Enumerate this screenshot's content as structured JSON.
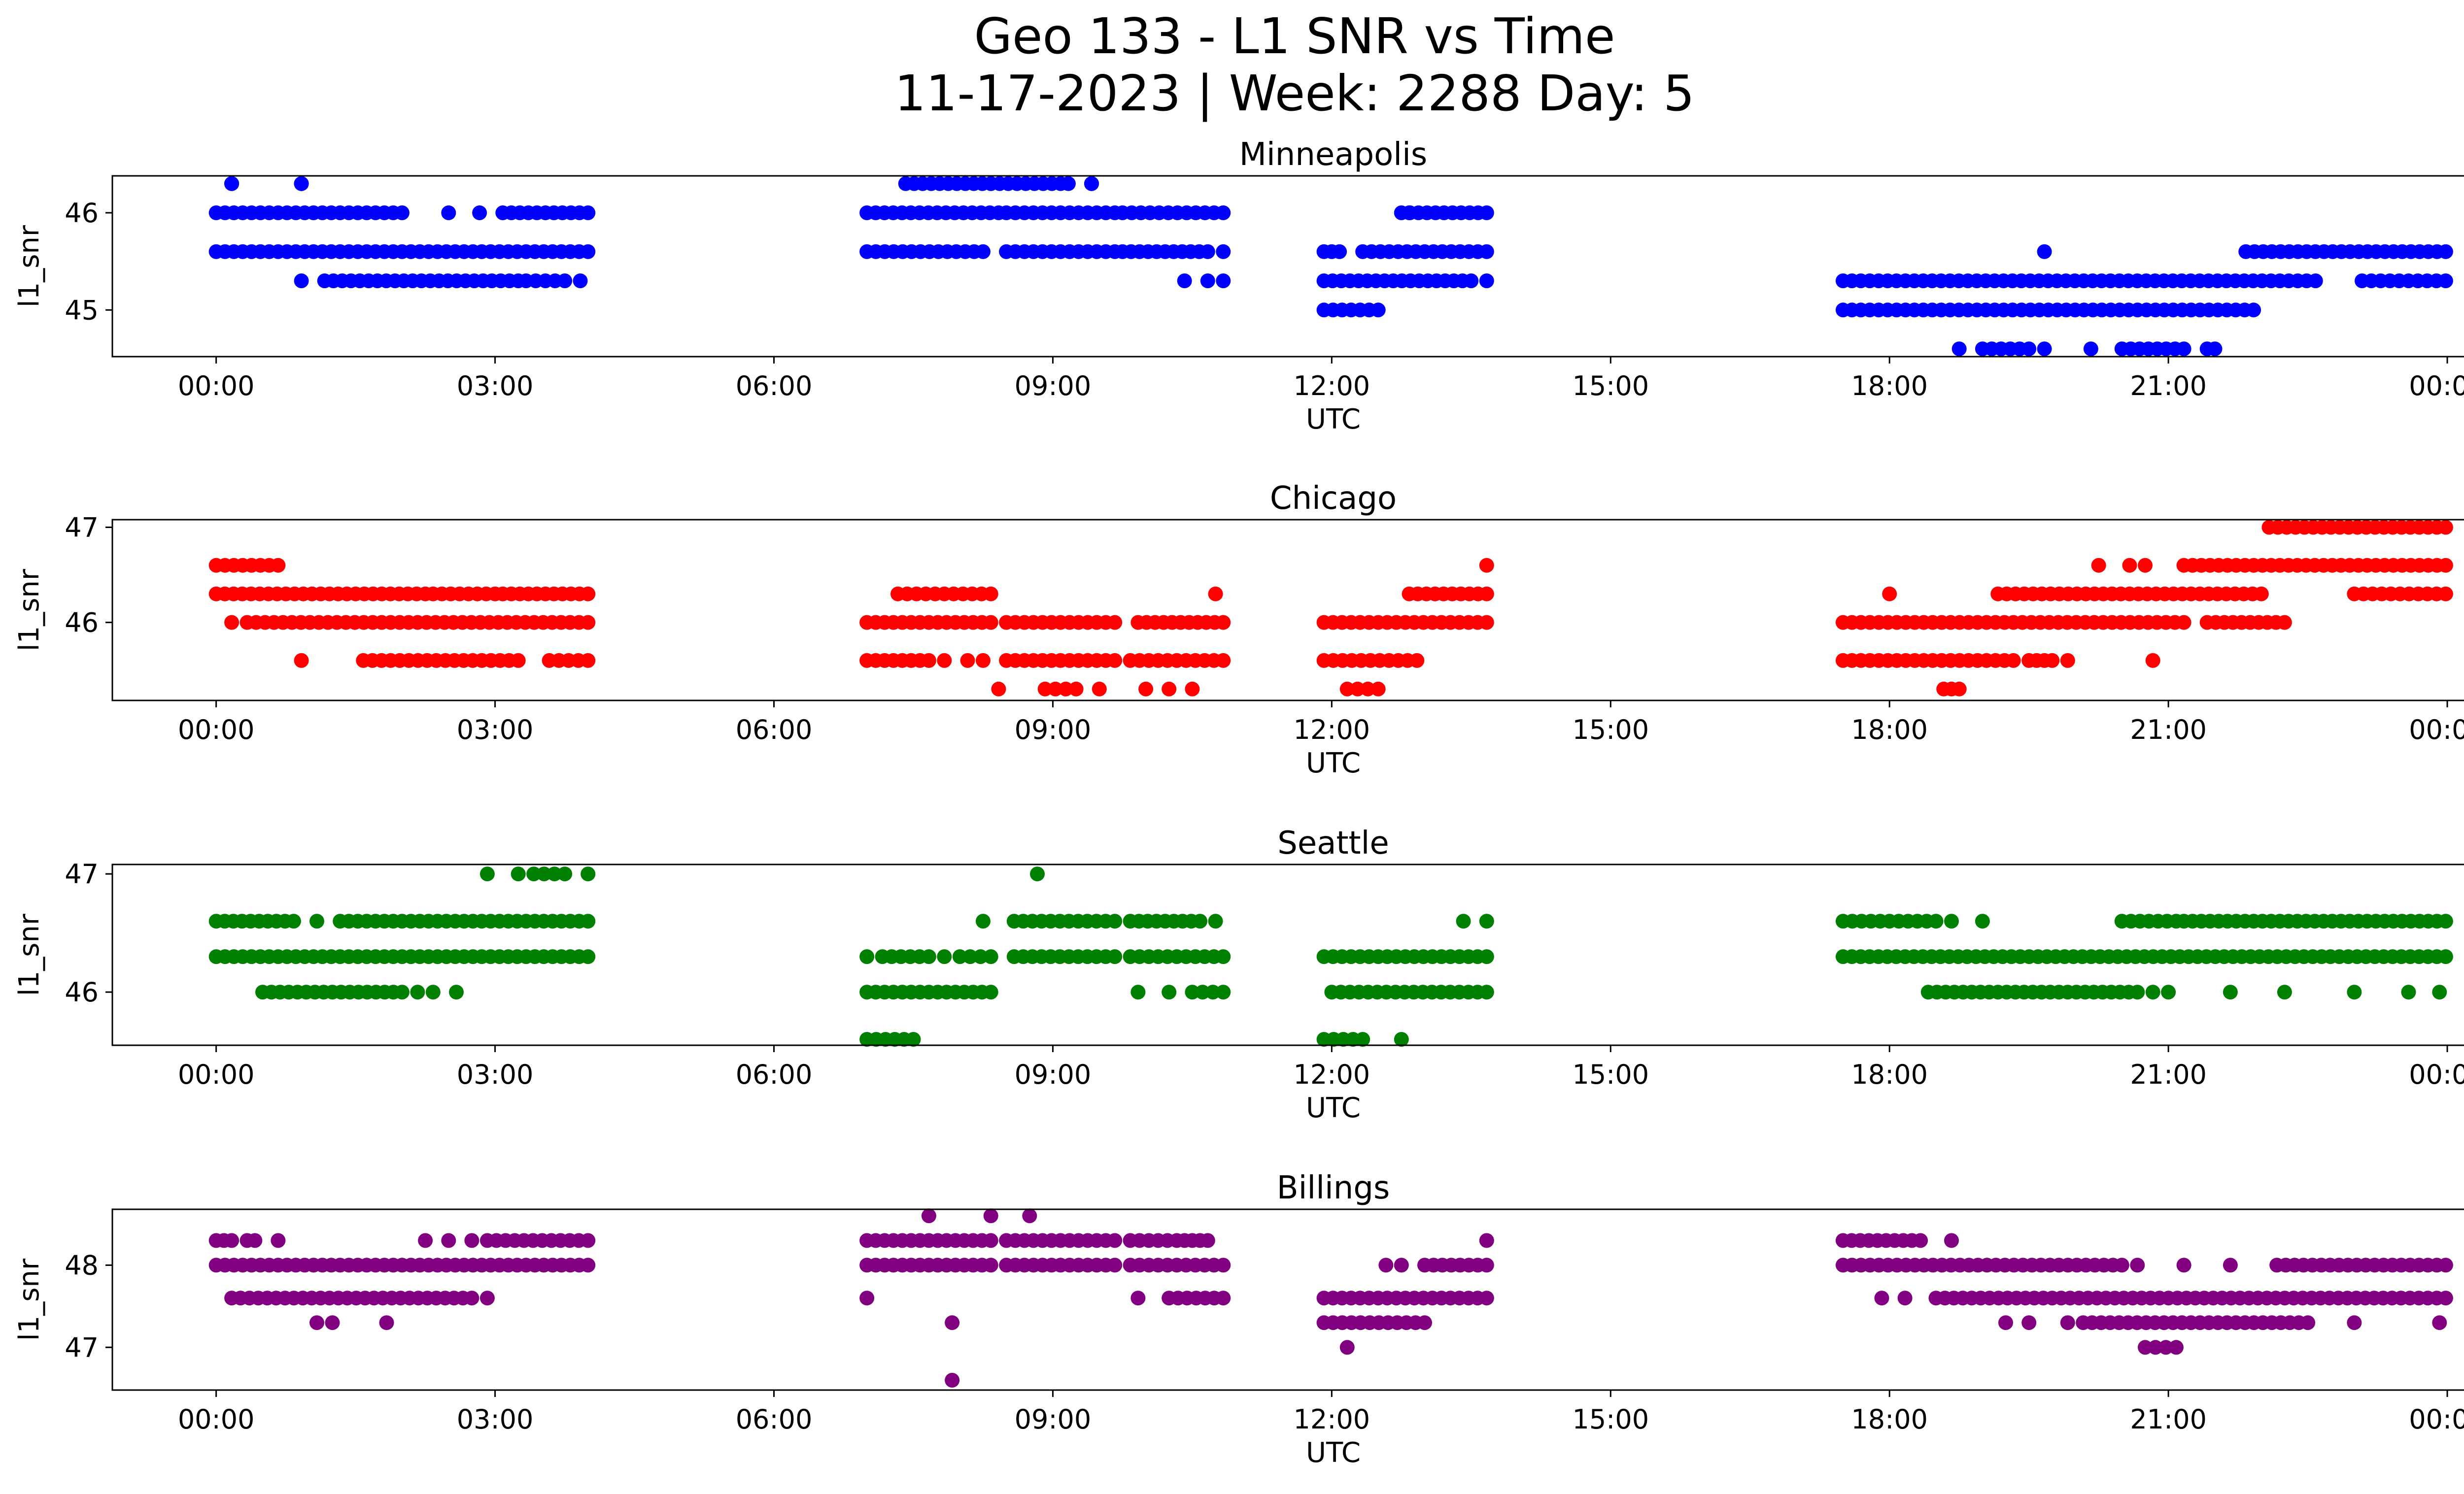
{
  "figure": {
    "title_line1": "Geo 133 - L1 SNR vs Time",
    "title_line2": "11-17-2023 | Week: 2288 Day: 5"
  },
  "chart_data": [
    {
      "type": "scatter",
      "title": "Minneapolis",
      "xlabel": "UTC",
      "ylabel": "l1_snr",
      "color": "#0000ff",
      "xlim": [
        "2023-11-16T22:53",
        "2023-11-18T01:09"
      ],
      "ylim": [
        44.52,
        46.38
      ],
      "x_ticks": [
        "00:00",
        "03:00",
        "06:00",
        "09:00",
        "12:00",
        "15:00",
        "18:00",
        "21:00",
        "00:00"
      ],
      "y_ticks": [
        45,
        46
      ],
      "legend": "none",
      "grid": false,
      "segments": [
        {
          "y": 46.3,
          "ranges": [
            [
              "00:10",
              "00:10"
            ],
            [
              "00:55",
              "00:55"
            ],
            [
              "07:25",
              "08:20"
            ],
            [
              "08:20",
              "09:05"
            ],
            [
              "09:25",
              "09:25"
            ]
          ],
          "points": [
            "00:10",
            "00:55",
            "09:10",
            "09:25"
          ]
        },
        {
          "y": 46.0,
          "ranges": [
            [
              "00:00",
              "02:00"
            ],
            [
              "03:05",
              "04:00"
            ],
            [
              "07:00",
              "08:25"
            ],
            [
              "08:30",
              "09:40"
            ],
            [
              "09:45",
              "10:50"
            ],
            [
              "12:45",
              "13:40"
            ]
          ],
          "points": [
            "02:30",
            "02:50",
            "12:50"
          ]
        },
        {
          "y": 45.6,
          "ranges": [
            [
              "00:00",
              "04:00"
            ],
            [
              "07:00",
              "08:15"
            ],
            [
              "08:30",
              "09:40"
            ],
            [
              "09:45",
              "10:40"
            ],
            [
              "11:55",
              "12:05"
            ],
            [
              "12:20",
              "13:40"
            ],
            [
              "21:50",
              "23:59"
            ]
          ],
          "points": [
            "10:50",
            "19:40"
          ]
        },
        {
          "y": 45.3,
          "ranges": [
            [
              "01:10",
              "03:15"
            ],
            [
              "03:20",
              "03:45"
            ],
            [
              "11:55",
              "13:30"
            ],
            [
              "17:30",
              "22:35"
            ],
            [
              "23:05",
              "23:59"
            ]
          ],
          "points": [
            "00:55",
            "03:55",
            "10:25",
            "10:40",
            "10:50",
            "13:40"
          ]
        },
        {
          "y": 45.0,
          "ranges": [
            [
              "11:55",
              "12:30"
            ],
            [
              "17:30",
              "21:55"
            ]
          ],
          "points": []
        },
        {
          "y": 44.6,
          "ranges": [
            [
              "19:00",
              "19:30"
            ],
            [
              "20:30",
              "21:10"
            ]
          ],
          "points": [
            "18:45",
            "19:40",
            "20:10",
            "21:25",
            "21:30"
          ]
        }
      ]
    },
    {
      "type": "scatter",
      "title": "Chicago",
      "xlabel": "UTC",
      "ylabel": "l1_snr",
      "color": "#ff0000",
      "xlim": [
        "2023-11-16T22:53",
        "2023-11-18T01:09"
      ],
      "ylim": [
        45.18,
        47.08
      ],
      "x_ticks": [
        "00:00",
        "03:00",
        "06:00",
        "09:00",
        "12:00",
        "15:00",
        "18:00",
        "21:00",
        "00:00"
      ],
      "y_ticks": [
        46,
        47
      ],
      "legend": "none",
      "grid": false,
      "segments": [
        {
          "y": 47.0,
          "ranges": [
            [
              "22:05",
              "23:59"
            ]
          ],
          "points": []
        },
        {
          "y": 46.6,
          "ranges": [
            [
              "00:00",
              "00:40"
            ],
            [
              "21:10",
              "23:59"
            ]
          ],
          "points": [
            "13:40",
            "20:15",
            "20:35",
            "20:45"
          ]
        },
        {
          "y": 46.3,
          "ranges": [
            [
              "00:00",
              "02:15"
            ],
            [
              "02:20",
              "03:00"
            ],
            [
              "03:05",
              "04:00"
            ],
            [
              "07:20",
              "08:20"
            ],
            [
              "12:50",
              "13:40"
            ],
            [
              "19:10",
              "22:00"
            ],
            [
              "23:00",
              "23:59"
            ]
          ],
          "points": [
            "10:45",
            "18:00"
          ]
        },
        {
          "y": 46.0,
          "ranges": [
            [
              "00:20",
              "04:00"
            ],
            [
              "07:00",
              "08:20"
            ],
            [
              "08:30",
              "09:40"
            ],
            [
              "09:55",
              "10:50"
            ],
            [
              "11:55",
              "13:40"
            ],
            [
              "17:30",
              "21:10"
            ],
            [
              "21:25",
              "22:15"
            ]
          ],
          "points": [
            "00:10"
          ]
        },
        {
          "y": 45.6,
          "ranges": [
            [
              "01:35",
              "03:15"
            ],
            [
              "03:35",
              "04:00"
            ],
            [
              "07:00",
              "07:40"
            ],
            [
              "08:30",
              "09:40"
            ],
            [
              "09:50",
              "10:50"
            ],
            [
              "11:55",
              "12:55"
            ],
            [
              "17:30",
              "19:20"
            ],
            [
              "19:30",
              "19:45"
            ]
          ],
          "points": [
            "00:55",
            "07:50",
            "08:05",
            "08:15",
            "19:55",
            "20:50"
          ]
        },
        {
          "y": 45.3,
          "ranges": [
            [
              "08:55",
              "09:15"
            ],
            [
              "12:10",
              "12:30"
            ],
            [
              "18:40",
              "18:45"
            ]
          ],
          "points": [
            "08:25",
            "09:30",
            "10:00",
            "10:15",
            "10:30",
            "18:35"
          ]
        }
      ]
    },
    {
      "type": "scatter",
      "title": "Seattle",
      "xlabel": "UTC",
      "ylabel": "l1_snr",
      "color": "#008000",
      "xlim": [
        "2023-11-16T22:53",
        "2023-11-18T01:09"
      ],
      "ylim": [
        45.55,
        47.08
      ],
      "x_ticks": [
        "00:00",
        "03:00",
        "06:00",
        "09:00",
        "12:00",
        "15:00",
        "18:00",
        "21:00",
        "00:00"
      ],
      "y_ticks": [
        46,
        47
      ],
      "legend": "none",
      "grid": false,
      "segments": [
        {
          "y": 47.0,
          "ranges": [
            [
              "03:25",
              "03:45"
            ]
          ],
          "points": [
            "02:55",
            "03:15",
            "04:00",
            "08:50"
          ]
        },
        {
          "y": 46.6,
          "ranges": [
            [
              "00:00",
              "00:50"
            ],
            [
              "01:20",
              "04:00"
            ],
            [
              "08:35",
              "09:40"
            ],
            [
              "09:50",
              "10:35"
            ],
            [
              "17:30",
              "18:30"
            ],
            [
              "20:30",
              "21:05"
            ],
            [
              "21:10",
              "23:59"
            ]
          ],
          "points": [
            "01:05",
            "08:15",
            "10:45",
            "13:25",
            "13:40",
            "18:40",
            "19:00"
          ]
        },
        {
          "y": 46.3,
          "ranges": [
            [
              "00:00",
              "04:00"
            ],
            [
              "07:10",
              "07:40"
            ],
            [
              "08:00",
              "08:20"
            ],
            [
              "08:35",
              "09:40"
            ],
            [
              "09:50",
              "10:50"
            ],
            [
              "11:55",
              "13:40"
            ],
            [
              "17:30",
              "23:59"
            ]
          ],
          "points": [
            "07:00",
            "07:50"
          ]
        },
        {
          "y": 46.0,
          "ranges": [
            [
              "00:30",
              "02:00"
            ],
            [
              "07:00",
              "08:20"
            ],
            [
              "10:30",
              "10:50"
            ],
            [
              "12:00",
              "13:40"
            ],
            [
              "18:25",
              "20:40"
            ]
          ],
          "points": [
            "02:10",
            "02:20",
            "02:35",
            "09:55",
            "10:15",
            "20:50",
            "21:00",
            "21:40",
            "22:15",
            "23:00",
            "23:35",
            "23:55"
          ]
        },
        {
          "y": 45.6,
          "ranges": [
            [
              "07:00",
              "07:30"
            ],
            [
              "11:55",
              "12:20"
            ]
          ],
          "points": [
            "12:45"
          ]
        }
      ]
    },
    {
      "type": "scatter",
      "title": "Billings",
      "xlabel": "UTC",
      "ylabel": "l1_snr",
      "color": "#800080",
      "xlim": [
        "2023-11-16T22:53",
        "2023-11-18T01:09"
      ],
      "ylim": [
        46.48,
        48.68
      ],
      "x_ticks": [
        "00:00",
        "03:00",
        "06:00",
        "09:00",
        "12:00",
        "15:00",
        "18:00",
        "21:00",
        "00:00"
      ],
      "y_ticks": [
        47,
        48
      ],
      "legend": "none",
      "grid": false,
      "segments": [
        {
          "y": 48.6,
          "ranges": [],
          "points": [
            "07:40",
            "08:20",
            "08:45"
          ]
        },
        {
          "y": 48.3,
          "ranges": [
            [
              "00:00",
              "00:10"
            ],
            [
              "00:20",
              "00:25"
            ],
            [
              "02:55",
              "04:00"
            ],
            [
              "07:00",
              "08:20"
            ],
            [
              "08:30",
              "09:40"
            ],
            [
              "09:50",
              "10:20"
            ],
            [
              "10:25",
              "10:40"
            ],
            [
              "17:30",
              "18:20"
            ]
          ],
          "points": [
            "00:40",
            "02:15",
            "02:30",
            "02:45",
            "13:40",
            "18:40"
          ]
        },
        {
          "y": 48.0,
          "ranges": [
            [
              "00:00",
              "04:00"
            ],
            [
              "07:00",
              "08:20"
            ],
            [
              "08:30",
              "09:40"
            ],
            [
              "09:50",
              "10:50"
            ],
            [
              "13:00",
              "13:40"
            ],
            [
              "17:30",
              "20:30"
            ],
            [
              "22:10",
              "23:59"
            ]
          ],
          "points": [
            "12:35",
            "12:45",
            "20:40",
            "21:10",
            "21:40"
          ]
        },
        {
          "y": 47.6,
          "ranges": [
            [
              "00:10",
              "02:45"
            ],
            [
              "10:15",
              "10:50"
            ],
            [
              "11:55",
              "13:40"
            ],
            [
              "18:30",
              "23:59"
            ]
          ],
          "points": [
            "02:55",
            "07:00",
            "09:55",
            "17:55",
            "18:10"
          ]
        },
        {
          "y": 47.3,
          "ranges": [
            [
              "11:55",
              "13:00"
            ],
            [
              "20:05",
              "22:30"
            ]
          ],
          "points": [
            "01:05",
            "01:15",
            "01:50",
            "07:55",
            "19:15",
            "19:30",
            "19:55",
            "23:00",
            "23:55"
          ]
        },
        {
          "y": 47.0,
          "ranges": [
            [
              "20:45",
              "21:05"
            ]
          ],
          "points": [
            "12:10"
          ]
        },
        {
          "y": 46.6,
          "ranges": [],
          "points": [
            "07:55"
          ]
        }
      ]
    }
  ]
}
